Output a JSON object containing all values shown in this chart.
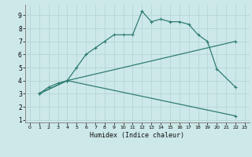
{
  "xlabel": "Humidex (Indice chaleur)",
  "xlim": [
    -0.5,
    23.5
  ],
  "ylim": [
    0.8,
    9.8
  ],
  "yticks": [
    1,
    2,
    3,
    4,
    5,
    6,
    7,
    8,
    9
  ],
  "xticks": [
    0,
    1,
    2,
    3,
    4,
    5,
    6,
    7,
    8,
    9,
    10,
    11,
    12,
    13,
    14,
    15,
    16,
    17,
    18,
    19,
    20,
    21,
    22,
    23
  ],
  "bg_color": "#cde8e8",
  "grid_color": "#b8d8d8",
  "line_color": "#2e7d72",
  "curve1_x": [
    1,
    2,
    3,
    4,
    5,
    6,
    7,
    8,
    9,
    10,
    11,
    12,
    13,
    14,
    15,
    16,
    17,
    18,
    19,
    20,
    22
  ],
  "curve1_y": [
    3.0,
    3.5,
    3.8,
    4.0,
    5.0,
    6.0,
    6.5,
    7.0,
    7.5,
    7.5,
    7.5,
    9.3,
    8.5,
    8.7,
    8.5,
    8.5,
    8.3,
    7.5,
    7.0,
    4.9,
    3.5
  ],
  "curve2_x": [
    1,
    4,
    22
  ],
  "curve2_y": [
    3.0,
    4.0,
    7.0
  ],
  "curve3_x": [
    1,
    4,
    22
  ],
  "curve3_y": [
    3.0,
    4.0,
    1.3
  ]
}
